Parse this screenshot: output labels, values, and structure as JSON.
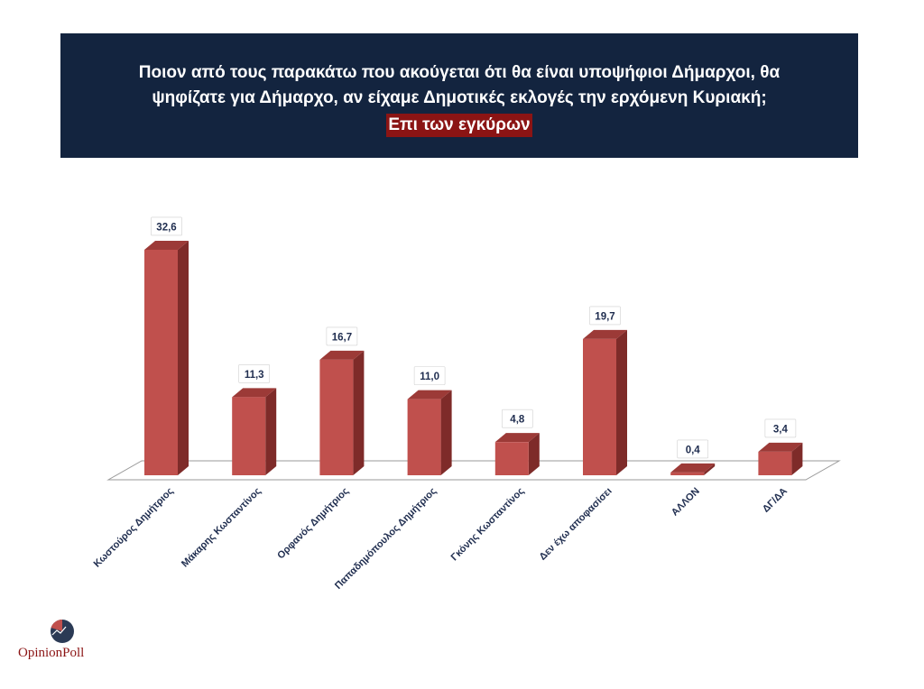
{
  "header": {
    "title_line1": "Ποιον από τους παρακάτω που ακούγεται ότι θα είναι υποψήφιοι Δήμαρχοι, θα",
    "title_line2": "ψηφίζατε για Δήμαρχο, αν είχαμε Δημοτικές εκλογές την ερχόμενη Κυριακή;",
    "subtitle": "Επι των εγκύρων"
  },
  "logo": {
    "opinion": "Opinion",
    "poll": "Poll"
  },
  "colors": {
    "title_bg": "#13243f",
    "subtitle_bg": "#8b1414",
    "bar_front": "#c0504d",
    "bar_side": "#7e2b29",
    "bar_top": "#9c3a37",
    "label_text": "#1f2d4f"
  },
  "chart_data": {
    "type": "bar",
    "title": "Ποιον από τους παρακάτω που ακούγεται ότι θα είναι υποψήφιοι Δήμαρχοι, θα ψηφίζατε για Δήμαρχο, αν είχαμε Δημοτικές εκλογές την ερχόμενη Κυριακή;",
    "subtitle": "Επι των εγκύρων",
    "categories": [
      "Κωστούρος Δημήτριος",
      "Μάκαρης Κωσταντίνος",
      "Ορφανός Δημήτριος",
      "Παπαδημόπουλος Δημήτριος",
      "Γκόνης Κωσταντίνος",
      "Δεν έχω αποφασίσει",
      "ΑΛΛΟΝ",
      "ΔΓ/ΔΑ"
    ],
    "values": [
      32.6,
      11.3,
      16.7,
      11.0,
      4.8,
      19.7,
      0.4,
      3.4
    ],
    "value_labels": [
      "32,6",
      "11,3",
      "16,7",
      "11,0",
      "4,8",
      "19,7",
      "0,4",
      "3,4"
    ],
    "ylim": [
      0,
      35
    ],
    "grid": false,
    "legend": "none",
    "style": "3d"
  }
}
